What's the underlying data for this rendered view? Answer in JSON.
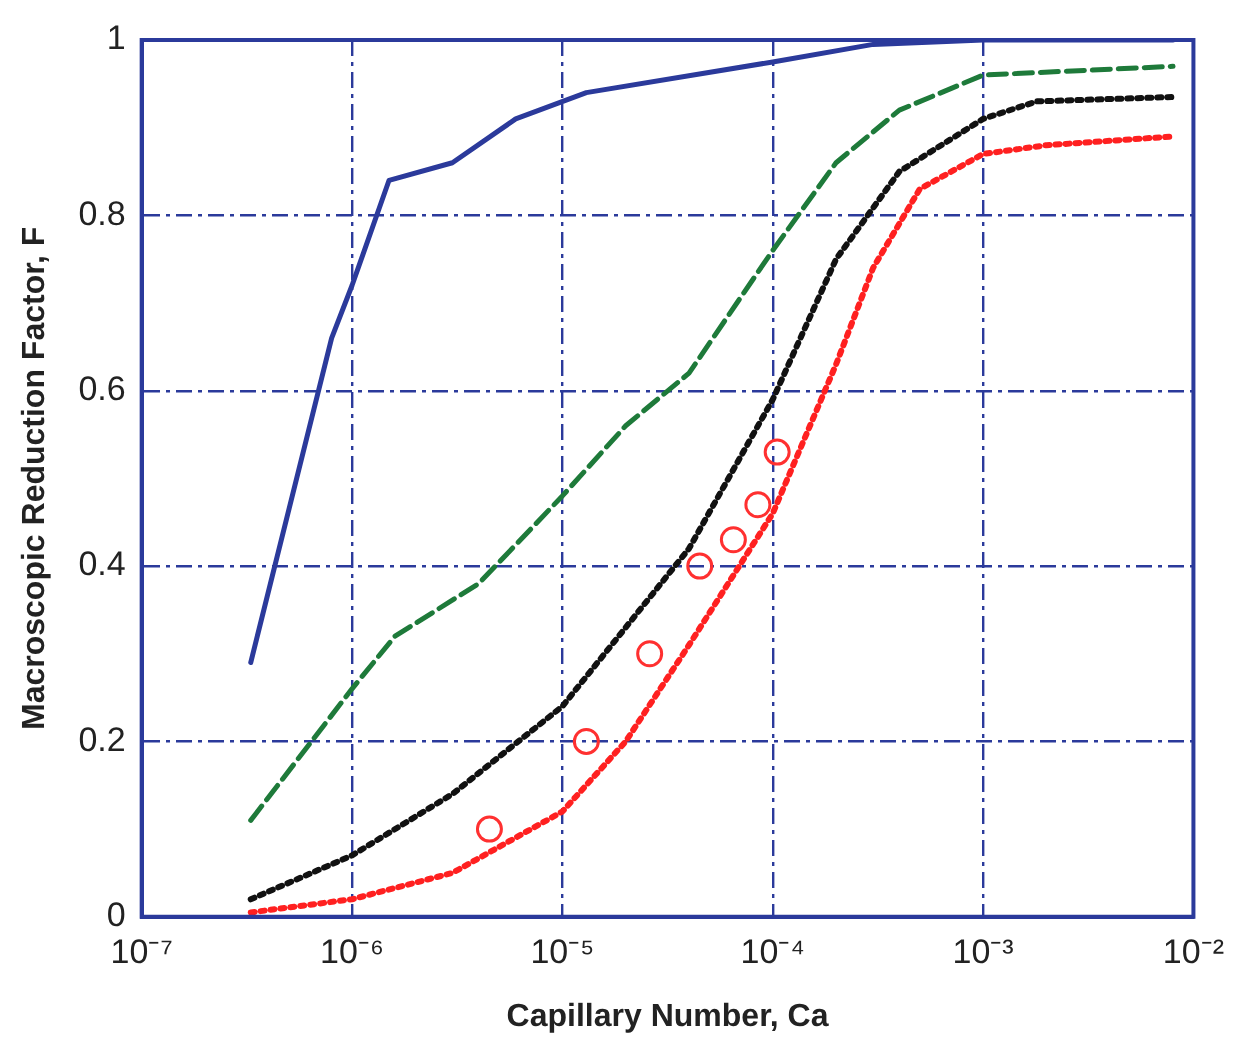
{
  "chart_data": {
    "type": "line",
    "xlabel": "Capillary Number, Ca",
    "ylabel": "Macroscopic Reduction Factor, F",
    "log": "x",
    "grid": true,
    "legend": false,
    "xlim": [
      1e-07,
      0.01
    ],
    "xticks": [
      {
        "value": 1e-07,
        "label": "10⁻⁷"
      },
      {
        "value": 1e-06,
        "label": "10⁻⁶"
      },
      {
        "value": 1e-05,
        "label": "10⁻⁵"
      },
      {
        "value": 0.0001,
        "label": "10⁻⁴"
      },
      {
        "value": 0.001,
        "label": "10⁻³"
      },
      {
        "value": 0.01,
        "label": "10⁻²"
      }
    ],
    "ylim": [
      0,
      1
    ],
    "yticks": [
      0,
      0.2,
      0.4,
      0.6,
      0.8,
      1
    ],
    "series": [
      {
        "color": "#2b3a9b",
        "line_style": "solid",
        "marker": "none",
        "x": [
          3.3e-07,
          8e-07,
          1e-06,
          1.5e-06,
          3e-06,
          6e-06,
          1.3e-05,
          0.0001,
          0.0003,
          0.001,
          0.008
        ],
        "values": [
          0.29,
          0.66,
          0.72,
          0.84,
          0.86,
          0.91,
          0.94,
          0.975,
          0.995,
          1.0,
          1.0
        ]
      },
      {
        "color": "#1e7a3a",
        "line_style": "dashed",
        "marker": "none",
        "x": [
          3.3e-07,
          1e-06,
          1.6e-06,
          4e-06,
          1e-05,
          2e-05,
          4e-05,
          0.0001,
          0.0002,
          0.0004,
          0.001,
          0.008
        ],
        "values": [
          0.11,
          0.26,
          0.32,
          0.38,
          0.48,
          0.56,
          0.62,
          0.76,
          0.86,
          0.92,
          0.96,
          0.97
        ]
      },
      {
        "color": "#111111",
        "line_style": "dotted",
        "marker": "none",
        "x": [
          3.3e-07,
          1e-06,
          3e-06,
          1e-05,
          2e-05,
          4e-05,
          0.0001,
          0.0002,
          0.0004,
          0.001,
          0.0018,
          0.008
        ],
        "values": [
          0.02,
          0.07,
          0.14,
          0.24,
          0.33,
          0.42,
          0.59,
          0.75,
          0.85,
          0.91,
          0.93,
          0.935
        ]
      },
      {
        "color": "#ff2020",
        "line_style": "dotted",
        "marker": "none",
        "x": [
          3.3e-07,
          1e-06,
          3e-06,
          1e-05,
          2e-05,
          4e-05,
          0.0001,
          0.0002,
          0.0003,
          0.0005,
          0.001,
          0.002,
          0.008
        ],
        "values": [
          0.005,
          0.02,
          0.05,
          0.12,
          0.2,
          0.31,
          0.46,
          0.63,
          0.74,
          0.83,
          0.87,
          0.88,
          0.89
        ]
      },
      {
        "type": "scatter",
        "color": "#ff3030",
        "marker": "circle",
        "x": [
          4.5e-06,
          1.3e-05,
          2.6e-05,
          4.5e-05,
          6.5e-05,
          8.5e-05,
          0.000105
        ],
        "values": [
          0.1,
          0.2,
          0.3,
          0.4,
          0.43,
          0.47,
          0.53
        ]
      }
    ]
  }
}
